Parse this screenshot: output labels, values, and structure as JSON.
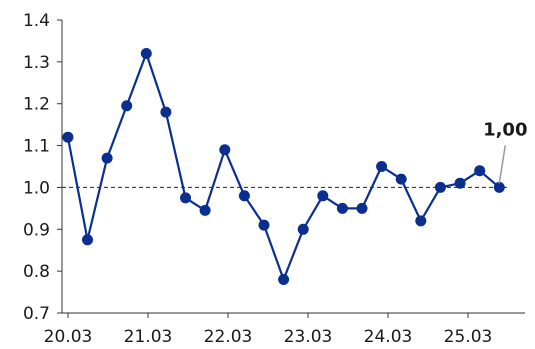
{
  "chart_data": {
    "type": "line",
    "title": "",
    "xlabel": "",
    "ylabel": "",
    "ylim": [
      0.7,
      1.4
    ],
    "yticks": [
      "0.7",
      "0.8",
      "0.9",
      "1.0",
      "1.1",
      "1.2",
      "1.3",
      "1.4"
    ],
    "xticks": [
      "20.03",
      "21.03",
      "22.03",
      "23.03",
      "24.03",
      "25.03"
    ],
    "xlim": [
      0,
      23
    ],
    "reference_line": {
      "value": 1.0,
      "style": "dashed"
    },
    "series": [
      {
        "values": [
          1.12,
          0.875,
          1.07,
          1.195,
          1.32,
          1.18,
          0.975,
          0.945,
          1.09,
          0.98,
          0.91,
          0.78,
          0.9,
          0.98,
          0.95,
          0.95,
          1.05,
          1.02,
          0.92,
          1.0,
          1.01,
          1.04,
          1.0
        ],
        "x": [
          0.3,
          1.3,
          2.3,
          3.3,
          4.3,
          5.3,
          6.3,
          7.3,
          8.3,
          9.3,
          10.3,
          11.3,
          12.3,
          13.3,
          14.3,
          15.3,
          16.3,
          17.3,
          18.3,
          19.3,
          20.3,
          21.3,
          22.3
        ],
        "color": "#0a2f8f"
      }
    ],
    "annotation": {
      "text": "1,00"
    },
    "grid": false,
    "colors": {
      "line": "#0a2f8f",
      "marker": "#0a2f8f",
      "axis": "#333333",
      "annotation_leader": "#999999"
    }
  }
}
